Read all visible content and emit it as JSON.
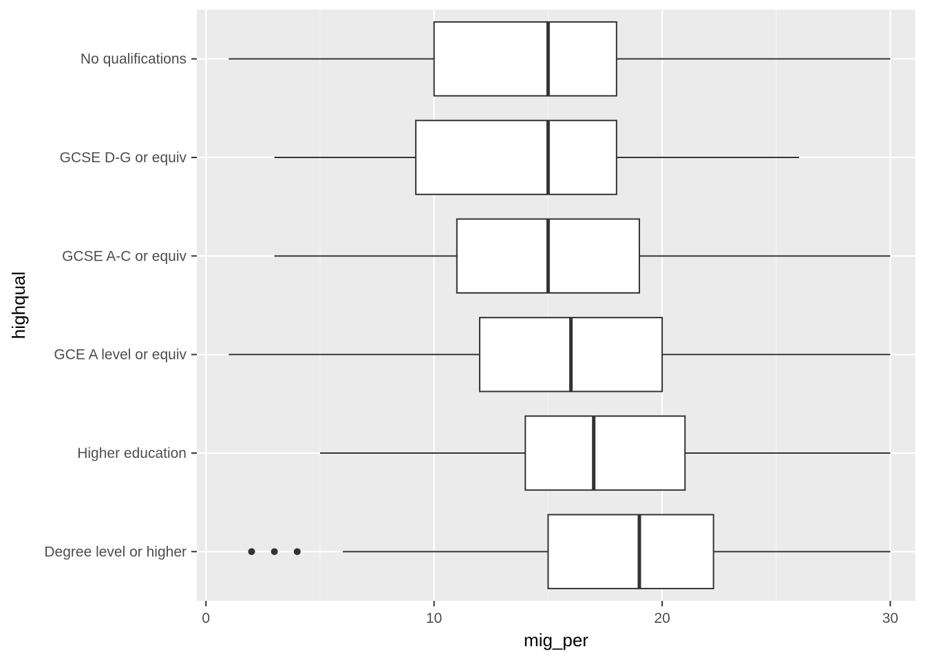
{
  "chart_data": {
    "type": "boxplot",
    "title": "",
    "xlabel": "mig_per",
    "ylabel": "highqual",
    "xlim": [
      -0.4,
      31.1
    ],
    "x_ticks": [
      0,
      10,
      20,
      30
    ],
    "grid": true,
    "legend": "none",
    "colors": {
      "panel_background": "#ebebeb",
      "grid_major": "#ffffff",
      "grid_minor": "#f5f5f5",
      "box_fill": "#ffffff",
      "box_line": "#333333",
      "tick_text": "#4d4d4d"
    },
    "categories": [
      "No qualifications",
      "GCSE D-G or equiv",
      "GCSE A-C or equiv",
      "GCE A level or equiv",
      "Higher education",
      "Degree level or higher"
    ],
    "boxes": [
      {
        "category": "No qualifications",
        "whisker_low": 1,
        "q1": 10,
        "median": 15,
        "q3": 18,
        "whisker_high": 30,
        "outliers": []
      },
      {
        "category": "GCSE D-G or equiv",
        "whisker_low": 3,
        "q1": 9.2,
        "median": 15,
        "q3": 18,
        "whisker_high": 26,
        "outliers": []
      },
      {
        "category": "GCSE A-C or equiv",
        "whisker_low": 3,
        "q1": 11,
        "median": 15,
        "q3": 19,
        "whisker_high": 30,
        "outliers": []
      },
      {
        "category": "GCE A level or equiv",
        "whisker_low": 1,
        "q1": 12,
        "median": 16,
        "q3": 20,
        "whisker_high": 30,
        "outliers": []
      },
      {
        "category": "Higher education",
        "whisker_low": 5,
        "q1": 14,
        "median": 17,
        "q3": 21,
        "whisker_high": 30,
        "outliers": []
      },
      {
        "category": "Degree level or higher",
        "whisker_low": 6,
        "q1": 15,
        "median": 19,
        "q3": 22.25,
        "whisker_high": 30,
        "outliers": [
          2,
          3,
          4
        ]
      }
    ]
  }
}
